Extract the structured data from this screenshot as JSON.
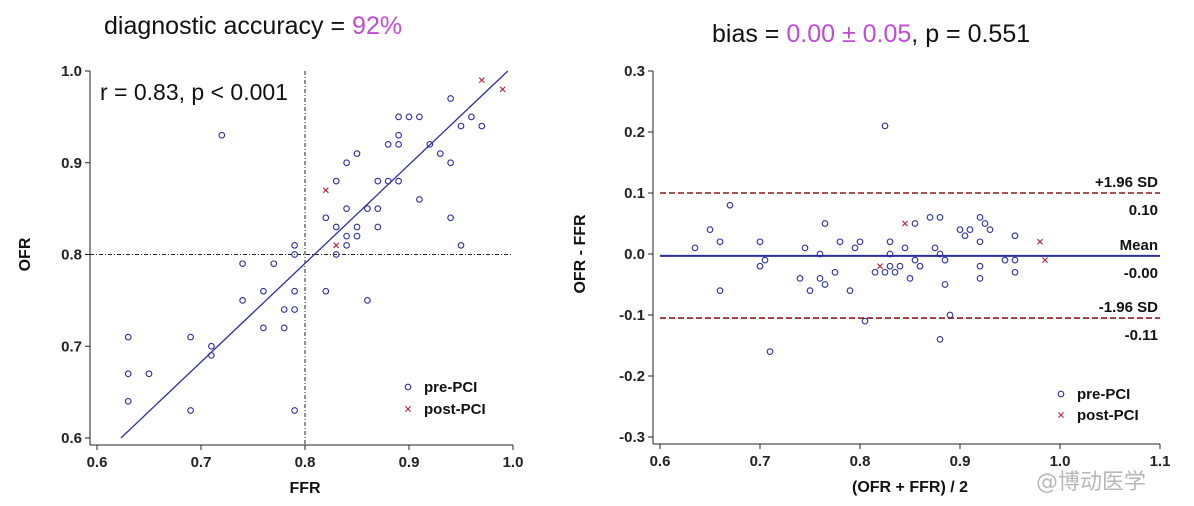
{
  "left_panel": {
    "title_prefix": "diagnostic accuracy = ",
    "title_value": "92%",
    "annotation": "r = 0.83, p < 0.001"
  },
  "right_panel": {
    "title_prefix": "bias = ",
    "title_value": "0.00 ± 0.05",
    "title_suffix": ", p = 0.551"
  },
  "watermark": "@博动医学",
  "colors": {
    "pre": "#2b2f9e",
    "post": "#b0243a",
    "highlight": "#c04bd6",
    "sd": "#8b1a1a",
    "line": "#2b2f9e"
  },
  "chart_data": [
    {
      "type": "scatter",
      "title": "diagnostic accuracy = 92%",
      "xlabel": "FFR",
      "ylabel": "OFR",
      "xlim": [
        0.6,
        1.0
      ],
      "ylim": [
        0.6,
        1.0
      ],
      "xticks": [
        "0.6",
        "0.7",
        "0.8",
        "0.9",
        "1.0"
      ],
      "yticks": [
        "0.6",
        "0.7",
        "0.8",
        "0.9",
        "1.0"
      ],
      "xtick_values": [
        0.6,
        0.7,
        0.8,
        0.9,
        1.0
      ],
      "ytick_values": [
        0.6,
        0.7,
        0.8,
        0.9,
        1.0
      ],
      "cutoff": 0.8,
      "fit_line": [
        [
          0.623,
          0.6
        ],
        [
          0.995,
          1.0
        ]
      ],
      "annotation": "r = 0.83, p < 0.001",
      "legend": [
        "pre-PCI",
        "post-PCI"
      ],
      "legend_position": "bottom-right",
      "series": [
        {
          "name": "pre-PCI",
          "marker": "circle",
          "points": [
            [
              0.63,
              0.71
            ],
            [
              0.63,
              0.67
            ],
            [
              0.63,
              0.64
            ],
            [
              0.65,
              0.67
            ],
            [
              0.69,
              0.71
            ],
            [
              0.69,
              0.63
            ],
            [
              0.71,
              0.7
            ],
            [
              0.71,
              0.69
            ],
            [
              0.72,
              0.93
            ],
            [
              0.74,
              0.79
            ],
            [
              0.74,
              0.75
            ],
            [
              0.76,
              0.76
            ],
            [
              0.76,
              0.72
            ],
            [
              0.77,
              0.79
            ],
            [
              0.78,
              0.74
            ],
            [
              0.78,
              0.72
            ],
            [
              0.79,
              0.81
            ],
            [
              0.79,
              0.8
            ],
            [
              0.79,
              0.76
            ],
            [
              0.79,
              0.74
            ],
            [
              0.79,
              0.63
            ],
            [
              0.82,
              0.84
            ],
            [
              0.82,
              0.76
            ],
            [
              0.83,
              0.88
            ],
            [
              0.83,
              0.83
            ],
            [
              0.83,
              0.8
            ],
            [
              0.84,
              0.9
            ],
            [
              0.84,
              0.85
            ],
            [
              0.84,
              0.82
            ],
            [
              0.84,
              0.81
            ],
            [
              0.85,
              0.91
            ],
            [
              0.85,
              0.83
            ],
            [
              0.85,
              0.82
            ],
            [
              0.86,
              0.85
            ],
            [
              0.86,
              0.75
            ],
            [
              0.87,
              0.88
            ],
            [
              0.87,
              0.85
            ],
            [
              0.87,
              0.83
            ],
            [
              0.88,
              0.92
            ],
            [
              0.88,
              0.88
            ],
            [
              0.89,
              0.95
            ],
            [
              0.89,
              0.93
            ],
            [
              0.89,
              0.92
            ],
            [
              0.89,
              0.88
            ],
            [
              0.9,
              0.95
            ],
            [
              0.91,
              0.95
            ],
            [
              0.91,
              0.86
            ],
            [
              0.92,
              0.92
            ],
            [
              0.93,
              0.91
            ],
            [
              0.94,
              0.97
            ],
            [
              0.94,
              0.9
            ],
            [
              0.94,
              0.84
            ],
            [
              0.95,
              0.94
            ],
            [
              0.95,
              0.81
            ],
            [
              0.96,
              0.95
            ],
            [
              0.97,
              0.94
            ]
          ]
        },
        {
          "name": "post-PCI",
          "marker": "x",
          "points": [
            [
              0.82,
              0.87
            ],
            [
              0.83,
              0.81
            ],
            [
              0.97,
              0.99
            ],
            [
              0.99,
              0.98
            ]
          ]
        }
      ]
    },
    {
      "type": "scatter",
      "title": "bias = 0.00 ± 0.05, p = 0.551",
      "xlabel": "(OFR + FFR) / 2",
      "ylabel": "OFR - FFR",
      "xlim": [
        0.6,
        1.1
      ],
      "ylim": [
        -0.3,
        0.3
      ],
      "xticks": [
        "0.6",
        "0.7",
        "0.8",
        "0.9",
        "1.0",
        "1.1"
      ],
      "yticks": [
        "0.3",
        "0.2",
        "0.1",
        "0.0",
        "-0.1",
        "-0.2",
        "-0.3"
      ],
      "xtick_values": [
        0.6,
        0.7,
        0.8,
        0.9,
        1.0,
        1.1
      ],
      "ytick_values": [
        0.3,
        0.2,
        0.1,
        0.0,
        -0.1,
        -0.2,
        -0.3
      ],
      "reference_lines": [
        {
          "name": "+1.96 SD",
          "value": 0.1,
          "label": "+1.96 SD",
          "value_label": "0.10",
          "style": "dashed"
        },
        {
          "name": "Mean",
          "value": -0.003,
          "label": "Mean",
          "value_label": "-0.00",
          "style": "solid"
        },
        {
          "name": "-1.96 SD",
          "value": -0.105,
          "label": "-1.96 SD",
          "value_label": "-0.11",
          "style": "dashed"
        }
      ],
      "legend": [
        "pre-PCI",
        "post-PCI"
      ],
      "legend_position": "bottom-right",
      "series": [
        {
          "name": "pre-PCI",
          "marker": "circle",
          "points": [
            [
              0.635,
              0.01
            ],
            [
              0.65,
              0.04
            ],
            [
              0.66,
              0.02
            ],
            [
              0.66,
              -0.06
            ],
            [
              0.67,
              0.08
            ],
            [
              0.7,
              0.02
            ],
            [
              0.7,
              -0.02
            ],
            [
              0.705,
              -0.01
            ],
            [
              0.71,
              -0.16
            ],
            [
              0.74,
              -0.04
            ],
            [
              0.745,
              0.01
            ],
            [
              0.75,
              -0.06
            ],
            [
              0.76,
              0.0
            ],
            [
              0.76,
              -0.04
            ],
            [
              0.765,
              0.05
            ],
            [
              0.765,
              -0.05
            ],
            [
              0.775,
              -0.03
            ],
            [
              0.78,
              0.02
            ],
            [
              0.79,
              -0.06
            ],
            [
              0.795,
              0.01
            ],
            [
              0.8,
              0.02
            ],
            [
              0.805,
              -0.11
            ],
            [
              0.815,
              -0.03
            ],
            [
              0.825,
              0.21
            ],
            [
              0.825,
              -0.03
            ],
            [
              0.83,
              0.02
            ],
            [
              0.83,
              -0.02
            ],
            [
              0.83,
              0.0
            ],
            [
              0.835,
              -0.03
            ],
            [
              0.84,
              -0.02
            ],
            [
              0.845,
              0.01
            ],
            [
              0.85,
              -0.04
            ],
            [
              0.855,
              0.05
            ],
            [
              0.855,
              -0.01
            ],
            [
              0.86,
              -0.02
            ],
            [
              0.87,
              0.06
            ],
            [
              0.875,
              0.01
            ],
            [
              0.88,
              0.06
            ],
            [
              0.88,
              0.0
            ],
            [
              0.88,
              -0.14
            ],
            [
              0.885,
              -0.01
            ],
            [
              0.885,
              -0.05
            ],
            [
              0.89,
              -0.1
            ],
            [
              0.9,
              0.04
            ],
            [
              0.905,
              0.03
            ],
            [
              0.91,
              0.04
            ],
            [
              0.92,
              0.06
            ],
            [
              0.92,
              0.02
            ],
            [
              0.92,
              -0.02
            ],
            [
              0.92,
              -0.04
            ],
            [
              0.925,
              0.05
            ],
            [
              0.93,
              0.04
            ],
            [
              0.945,
              -0.01
            ],
            [
              0.955,
              0.03
            ],
            [
              0.955,
              -0.01
            ],
            [
              0.955,
              -0.03
            ]
          ]
        },
        {
          "name": "post-PCI",
          "marker": "x",
          "points": [
            [
              0.82,
              -0.02
            ],
            [
              0.845,
              0.05
            ],
            [
              0.98,
              0.02
            ],
            [
              0.985,
              -0.01
            ]
          ]
        }
      ]
    }
  ]
}
